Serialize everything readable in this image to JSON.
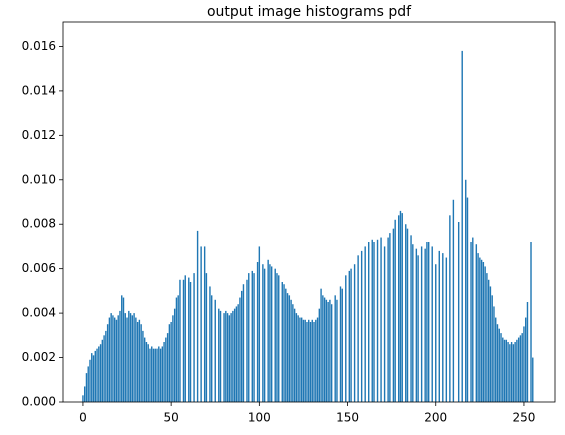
{
  "chart_data": {
    "type": "bar",
    "title": "output image histograms pdf",
    "color": "#1f77b4",
    "x": [
      0,
      1,
      2,
      3,
      4,
      5,
      6,
      7,
      8,
      9,
      10,
      11,
      12,
      13,
      14,
      15,
      16,
      17,
      18,
      19,
      20,
      21,
      22,
      23,
      24,
      25,
      26,
      27,
      28,
      29,
      30,
      31,
      32,
      33,
      34,
      35,
      36,
      37,
      38,
      39,
      40,
      41,
      42,
      43,
      44,
      45,
      46,
      47,
      48,
      49,
      50,
      51,
      52,
      53,
      54,
      55,
      56,
      57,
      58,
      59,
      60,
      61,
      62,
      63,
      64,
      65,
      66,
      67,
      68,
      69,
      70,
      71,
      72,
      73,
      74,
      75,
      76,
      77,
      78,
      79,
      80,
      81,
      82,
      83,
      84,
      85,
      86,
      87,
      88,
      89,
      90,
      91,
      92,
      93,
      94,
      95,
      96,
      97,
      98,
      99,
      100,
      101,
      102,
      103,
      104,
      105,
      106,
      107,
      108,
      109,
      110,
      111,
      112,
      113,
      114,
      115,
      116,
      117,
      118,
      119,
      120,
      121,
      122,
      123,
      124,
      125,
      126,
      127,
      128,
      129,
      130,
      131,
      132,
      133,
      134,
      135,
      136,
      137,
      138,
      139,
      140,
      141,
      142,
      143,
      144,
      145,
      146,
      147,
      148,
      149,
      150,
      151,
      152,
      153,
      154,
      155,
      156,
      157,
      158,
      159,
      160,
      161,
      162,
      163,
      164,
      165,
      166,
      167,
      168,
      169,
      170,
      171,
      172,
      173,
      174,
      175,
      176,
      177,
      178,
      179,
      180,
      181,
      182,
      183,
      184,
      185,
      186,
      187,
      188,
      189,
      190,
      191,
      192,
      193,
      194,
      195,
      196,
      197,
      198,
      199,
      200,
      201,
      202,
      203,
      204,
      205,
      206,
      207,
      208,
      209,
      210,
      211,
      212,
      213,
      214,
      215,
      216,
      217,
      218,
      219,
      220,
      221,
      222,
      223,
      224,
      225,
      226,
      227,
      228,
      229,
      230,
      231,
      232,
      233,
      234,
      235,
      236,
      237,
      238,
      239,
      240,
      241,
      242,
      243,
      244,
      245,
      246,
      247,
      248,
      249,
      250,
      251,
      252,
      253,
      254,
      255
    ],
    "values": [
      0.0003,
      0.0007,
      0.0013,
      0.0016,
      0.0019,
      0.0022,
      0.0021,
      0.0023,
      0.0024,
      0.0025,
      0.0026,
      0.0028,
      0.003,
      0.0032,
      0.0035,
      0.0038,
      0.004,
      0.0039,
      0.0038,
      0.0037,
      0.0039,
      0.0041,
      0.0048,
      0.0047,
      0.004,
      0.0038,
      0.0041,
      0.004,
      0.0039,
      0.004,
      0.0038,
      0.0036,
      0.0037,
      0.0035,
      0.0032,
      0.0029,
      0.0027,
      0.0026,
      0.0024,
      0.0025,
      0.0024,
      0.0024,
      0.0024,
      0.0025,
      0.0024,
      0.0025,
      0.0027,
      0.0029,
      0.0031,
      0.0035,
      0.0036,
      0.0039,
      0.0042,
      0.0047,
      0.0048,
      0.0055,
      0,
      0.0055,
      0.0057,
      0,
      0.0056,
      0.0054,
      0,
      0.0058,
      0,
      0.0077,
      0,
      0.007,
      0,
      0.007,
      0.0058,
      0,
      0.0052,
      0.0048,
      0,
      0.0046,
      0,
      0.0042,
      0.0041,
      0,
      0.004,
      0.0041,
      0.004,
      0.0039,
      0.004,
      0.0041,
      0.0042,
      0.0043,
      0.0044,
      0.0047,
      0.005,
      0.0053,
      0,
      0.0055,
      0.0058,
      0,
      0.0059,
      0.0058,
      0,
      0.0063,
      0.007,
      0,
      0.0062,
      0.006,
      0,
      0.0064,
      0.0062,
      0.0061,
      0,
      0.006,
      0.0058,
      0.0057,
      0,
      0.0054,
      0.0053,
      0.0051,
      0.0049,
      0.0048,
      0.0046,
      0.0044,
      0.0042,
      0.004,
      0.0039,
      0.0038,
      0.0038,
      0.0037,
      0.0037,
      0.0036,
      0.0037,
      0.0036,
      0.0037,
      0.0036,
      0.0037,
      0.0038,
      0.0042,
      0.0051,
      0.0048,
      0.0047,
      0.0046,
      0.0045,
      0.0046,
      0.0044,
      0,
      0.0048,
      0.0046,
      0,
      0.0052,
      0.0051,
      0,
      0.0057,
      0,
      0.0059,
      0.006,
      0,
      0.0062,
      0,
      0.0066,
      0,
      0.0068,
      0,
      0.007,
      0,
      0.0072,
      0,
      0.0073,
      0.0072,
      0,
      0.0073,
      0,
      0.0074,
      0,
      0.007,
      0,
      0.0074,
      0.0076,
      0,
      0.0078,
      0.0082,
      0,
      0.0084,
      0.0086,
      0.0085,
      0,
      0.008,
      0.0078,
      0,
      0.0075,
      0.0071,
      0,
      0.0069,
      0.0066,
      0,
      0.007,
      0,
      0.0069,
      0.0072,
      0.0072,
      0,
      0.007,
      0,
      0.0062,
      0,
      0.0068,
      0,
      0.0067,
      0,
      0.0065,
      0,
      0.0084,
      0,
      0.0091,
      0,
      0,
      0.0081,
      0,
      0.0158,
      0,
      0.01,
      0.0092,
      0,
      0.0072,
      0.0074,
      0,
      0.0071,
      0.0067,
      0.0065,
      0.0064,
      0.0063,
      0.0061,
      0.0058,
      0.0055,
      0.0052,
      0.0048,
      0.0043,
      0.0038,
      0.0035,
      0.0033,
      0.0031,
      0.0029,
      0.0028,
      0.0028,
      0.0027,
      0.0026,
      0.0027,
      0.0026,
      0.0027,
      0.0028,
      0.0029,
      0.003,
      0.0031,
      0.0034,
      0.0038,
      0.0045,
      0,
      0.0072,
      0.002
    ],
    "xlim": [
      -11.3,
      267.6
    ],
    "xticks": [
      0,
      50,
      100,
      150,
      200,
      250
    ],
    "ylim": [
      0,
      0.0171
    ],
    "yticks": [
      {
        "value": 0,
        "label": "0.000"
      },
      {
        "value": 0.002,
        "label": "0.002"
      },
      {
        "value": 0.004,
        "label": "0.004"
      },
      {
        "value": 0.006,
        "label": "0.006"
      },
      {
        "value": 0.008,
        "label": "0.008"
      },
      {
        "value": 0.01,
        "label": "0.010"
      },
      {
        "value": 0.012,
        "label": "0.012"
      },
      {
        "value": 0.014,
        "label": "0.014"
      },
      {
        "value": 0.016,
        "label": "0.016"
      }
    ],
    "grid": false
  }
}
